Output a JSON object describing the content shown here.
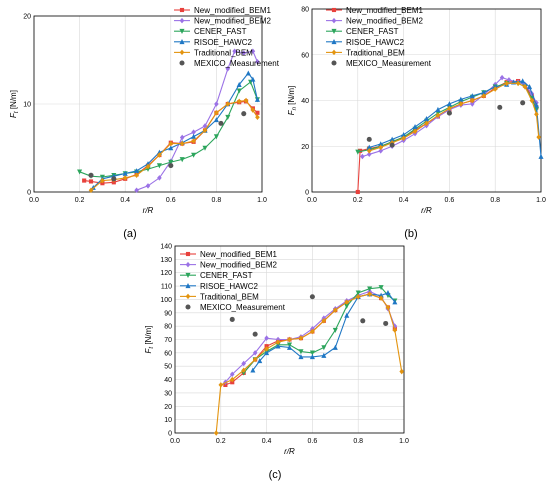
{
  "chart_data": [
    {
      "type": "line",
      "panel_label": "(a)",
      "xlabel": "r/R",
      "ylabel": "Ft [N/m]",
      "ylabel_main": "F",
      "ylabel_sub": "t",
      "ylabel_unit": " [N/m]",
      "xlim": [
        0,
        1
      ],
      "ylim": [
        0,
        20
      ],
      "xticks": [
        "0.0",
        "0.2",
        "0.4",
        "0.6",
        "0.8",
        "1.0"
      ],
      "yticks": [
        "0",
        "10",
        "20"
      ],
      "grid": true,
      "legend_position": "top-right",
      "series": [
        {
          "name": "New_modified_BEM1",
          "color": "#e8413c",
          "marker": "square",
          "x": [
            0.22,
            0.25,
            0.3,
            0.35,
            0.4,
            0.45,
            0.5,
            0.55,
            0.6,
            0.65,
            0.7,
            0.75,
            0.8,
            0.85,
            0.9,
            0.93,
            0.96,
            0.98
          ],
          "y": [
            1.3,
            1.2,
            1.0,
            1.1,
            1.5,
            2.0,
            3.0,
            4.2,
            5.6,
            5.5,
            5.7,
            7.0,
            9.0,
            10.0,
            10.2,
            10.3,
            9.5,
            9.0
          ]
        },
        {
          "name": "New_modified_BEM2",
          "color": "#9b72e6",
          "marker": "diamond",
          "x": [
            0.45,
            0.5,
            0.55,
            0.6,
            0.65,
            0.7,
            0.75,
            0.8,
            0.85,
            0.88,
            0.92,
            0.96,
            0.98
          ],
          "y": [
            0.2,
            0.7,
            1.6,
            3.5,
            6.2,
            6.8,
            7.5,
            10.0,
            14.0,
            16.0,
            15.8,
            16.0,
            14.8
          ]
        },
        {
          "name": "CENER_FAST",
          "color": "#2ca55c",
          "marker": "triangle-down",
          "x": [
            0.2,
            0.25,
            0.3,
            0.35,
            0.4,
            0.45,
            0.5,
            0.55,
            0.6,
            0.65,
            0.7,
            0.75,
            0.8,
            0.85,
            0.9,
            0.95,
            0.98
          ],
          "y": [
            2.3,
            1.8,
            1.7,
            1.9,
            2.1,
            2.3,
            2.6,
            3.0,
            3.4,
            3.7,
            4.2,
            5.0,
            6.3,
            8.5,
            11.5,
            12.5,
            10.5
          ]
        },
        {
          "name": "RISOE_HAWC2",
          "color": "#1f77c4",
          "marker": "triangle-up",
          "x": [
            0.26,
            0.3,
            0.35,
            0.4,
            0.45,
            0.5,
            0.55,
            0.6,
            0.65,
            0.7,
            0.75,
            0.8,
            0.85,
            0.9,
            0.94,
            0.96,
            0.98
          ],
          "y": [
            0.5,
            1.5,
            1.8,
            2.1,
            2.4,
            3.2,
            4.5,
            5.0,
            5.6,
            6.3,
            7.0,
            8.2,
            10.0,
            12.2,
            13.5,
            12.8,
            10.5
          ]
        },
        {
          "name": "Traditional_BEM",
          "color": "#e3940f",
          "marker": "diamond",
          "x": [
            0.25,
            0.3,
            0.35,
            0.4,
            0.45,
            0.5,
            0.55,
            0.6,
            0.65,
            0.7,
            0.75,
            0.8,
            0.85,
            0.9,
            0.93,
            0.96,
            0.98
          ],
          "y": [
            0.2,
            1.3,
            1.4,
            1.6,
            1.9,
            2.9,
            4.2,
            5.5,
            5.5,
            5.8,
            7.0,
            9.0,
            10.0,
            10.3,
            10.4,
            9.3,
            8.5
          ]
        },
        {
          "name": "MEXICO_Measurement",
          "color": "#555555",
          "marker": "circle",
          "scatter": true,
          "x": [
            0.25,
            0.35,
            0.6,
            0.82,
            0.92
          ],
          "y": [
            1.9,
            1.5,
            3.0,
            7.8,
            8.9
          ]
        }
      ]
    },
    {
      "type": "line",
      "panel_label": "(b)",
      "xlabel": "r/R",
      "ylabel": "Fn [N/m]",
      "ylabel_main": "F",
      "ylabel_sub": "n",
      "ylabel_unit": " [N/m]",
      "xlim": [
        0,
        1
      ],
      "ylim": [
        0,
        80
      ],
      "xticks": [
        "0.0",
        "0.2",
        "0.4",
        "0.6",
        "0.8",
        "1.0"
      ],
      "yticks": [
        "0",
        "20",
        "40",
        "60",
        "80"
      ],
      "grid": true,
      "legend_position": "top-right",
      "series": [
        {
          "name": "New_modified_BEM1",
          "color": "#e8413c",
          "marker": "square",
          "x": [
            0.2,
            0.21,
            0.25,
            0.3,
            0.35,
            0.4,
            0.45,
            0.5,
            0.55,
            0.6,
            0.65,
            0.7,
            0.75,
            0.8,
            0.85,
            0.9,
            0.93,
            0.96,
            0.98
          ],
          "y": [
            0.0,
            18.0,
            19.0,
            20.0,
            22.0,
            24.0,
            27.0,
            30.0,
            33.0,
            36.0,
            38.5,
            40.0,
            42.0,
            45.5,
            48.0,
            48.5,
            46.5,
            42.0,
            37.0
          ]
        },
        {
          "name": "New_modified_BEM2",
          "color": "#9b72e6",
          "marker": "diamond",
          "x": [
            0.22,
            0.25,
            0.3,
            0.35,
            0.4,
            0.45,
            0.5,
            0.55,
            0.6,
            0.65,
            0.7,
            0.75,
            0.8,
            0.83,
            0.86,
            0.9,
            0.93,
            0.96,
            0.98
          ],
          "y": [
            15.5,
            16.5,
            18.0,
            20.0,
            22.5,
            25.5,
            29.0,
            33.0,
            36.0,
            38.0,
            38.5,
            42.5,
            47.0,
            50.0,
            49.0,
            48.0,
            47.0,
            43.0,
            39.0
          ]
        },
        {
          "name": "CENER_FAST",
          "color": "#2ca55c",
          "marker": "triangle-down",
          "x": [
            0.2,
            0.25,
            0.3,
            0.35,
            0.4,
            0.45,
            0.5,
            0.55,
            0.6,
            0.65,
            0.7,
            0.75,
            0.8,
            0.85,
            0.9,
            0.93,
            0.96,
            0.98
          ],
          "y": [
            17.5,
            18.5,
            20.0,
            22.0,
            24.0,
            27.5,
            31.0,
            34.5,
            37.0,
            39.5,
            41.5,
            43.5,
            46.0,
            47.5,
            47.5,
            46.0,
            41.0,
            36.0
          ]
        },
        {
          "name": "RISOE_HAWC2",
          "color": "#1f77c4",
          "marker": "triangle-up",
          "x": [
            0.25,
            0.3,
            0.35,
            0.4,
            0.45,
            0.5,
            0.55,
            0.6,
            0.65,
            0.7,
            0.75,
            0.8,
            0.85,
            0.88,
            0.92,
            0.95,
            0.98,
            1.0
          ],
          "y": [
            19.5,
            21.0,
            23.0,
            25.0,
            28.5,
            32.0,
            36.0,
            38.5,
            40.5,
            42.0,
            43.5,
            46.0,
            47.0,
            48.0,
            48.5,
            46.0,
            38.0,
            15.5
          ]
        },
        {
          "name": "Traditional_BEM",
          "color": "#e3940f",
          "marker": "diamond",
          "x": [
            0.25,
            0.3,
            0.35,
            0.4,
            0.45,
            0.5,
            0.55,
            0.6,
            0.65,
            0.7,
            0.75,
            0.8,
            0.85,
            0.9,
            0.93,
            0.96,
            0.98,
            0.99
          ],
          "y": [
            18.0,
            19.5,
            21.5,
            23.5,
            26.5,
            30.0,
            33.5,
            36.5,
            38.5,
            40.0,
            42.0,
            45.0,
            47.5,
            47.5,
            46.0,
            40.0,
            34.0,
            24.0
          ]
        },
        {
          "name": "MEXICO_Measurement",
          "color": "#555555",
          "marker": "circle",
          "scatter": true,
          "x": [
            0.25,
            0.35,
            0.6,
            0.82,
            0.92
          ],
          "y": [
            23.0,
            20.5,
            34.5,
            37.0,
            39.0
          ]
        }
      ]
    },
    {
      "type": "line",
      "panel_label": "(c)",
      "xlabel": "r/R",
      "ylabel": "Ft [N/m]",
      "ylabel_main": "F",
      "ylabel_sub": "t",
      "ylabel_unit": " [N/m]",
      "xlim": [
        0,
        1
      ],
      "ylim": [
        0,
        140
      ],
      "xticks": [
        "0.0",
        "0.2",
        "0.4",
        "0.6",
        "0.8",
        "1.0"
      ],
      "yticks": [
        "0",
        "10",
        "20",
        "30",
        "40",
        "50",
        "60",
        "70",
        "80",
        "90",
        "100",
        "110",
        "120",
        "130",
        "140"
      ],
      "grid": true,
      "legend_position": "top-left",
      "series": [
        {
          "name": "New_modified_BEM1",
          "color": "#e8413c",
          "marker": "square",
          "x": [
            0.22,
            0.25,
            0.3,
            0.35,
            0.4,
            0.45,
            0.5,
            0.55,
            0.6,
            0.65,
            0.7,
            0.75,
            0.8,
            0.85,
            0.9,
            0.93,
            0.96
          ],
          "y": [
            36.0,
            38.0,
            45.0,
            55.0,
            65.0,
            69.0,
            70.0,
            71.0,
            76.0,
            84.0,
            92.0,
            98.0,
            102.0,
            104.0,
            101.0,
            94.0,
            78.0
          ]
        },
        {
          "name": "New_modified_BEM2",
          "color": "#9b72e6",
          "marker": "diamond",
          "x": [
            0.22,
            0.25,
            0.3,
            0.35,
            0.4,
            0.45,
            0.5,
            0.55,
            0.6,
            0.65,
            0.7,
            0.75,
            0.8,
            0.85,
            0.9,
            0.93,
            0.96
          ],
          "y": [
            38.0,
            44.0,
            52.0,
            60.0,
            71.0,
            70.0,
            70.0,
            72.0,
            78.0,
            86.0,
            93.0,
            99.0,
            103.0,
            106.0,
            102.0,
            93.0,
            80.0
          ]
        },
        {
          "name": "CENER_FAST",
          "color": "#2ca55c",
          "marker": "triangle-down",
          "x": [
            0.3,
            0.35,
            0.4,
            0.45,
            0.5,
            0.55,
            0.6,
            0.65,
            0.7,
            0.75,
            0.8,
            0.85,
            0.9,
            0.93,
            0.96
          ],
          "y": [
            45.0,
            55.0,
            61.0,
            66.0,
            66.0,
            61.0,
            60.0,
            64.0,
            77.0,
            95.0,
            105.0,
            108.0,
            109.0,
            103.0,
            99.0
          ]
        },
        {
          "name": "RISOE_HAWC2",
          "color": "#1f77c4",
          "marker": "triangle-up",
          "x": [
            0.34,
            0.37,
            0.4,
            0.45,
            0.5,
            0.55,
            0.6,
            0.65,
            0.7,
            0.75,
            0.8,
            0.85,
            0.9,
            0.93,
            0.96
          ],
          "y": [
            47.0,
            54.0,
            60.0,
            65.0,
            64.0,
            57.0,
            57.0,
            58.0,
            64.0,
            88.0,
            102.0,
            104.0,
            103.0,
            105.0,
            98.0
          ]
        },
        {
          "name": "Traditional_BEM",
          "color": "#e3940f",
          "marker": "diamond",
          "x": [
            0.18,
            0.2,
            0.25,
            0.3,
            0.35,
            0.4,
            0.45,
            0.5,
            0.55,
            0.6,
            0.65,
            0.7,
            0.75,
            0.8,
            0.85,
            0.9,
            0.93,
            0.96,
            0.99
          ],
          "y": [
            0.0,
            36.0,
            40.0,
            47.0,
            55.0,
            63.0,
            68.0,
            70.0,
            71.0,
            76.0,
            84.0,
            92.0,
            98.0,
            102.0,
            104.0,
            101.0,
            94.0,
            77.0,
            46.0
          ]
        },
        {
          "name": "MEXICO_Measurement",
          "color": "#555555",
          "marker": "circle",
          "scatter": true,
          "x": [
            0.25,
            0.35,
            0.6,
            0.82,
            0.92
          ],
          "y": [
            85.0,
            74.0,
            102.0,
            84.0,
            82.0
          ]
        }
      ]
    }
  ]
}
